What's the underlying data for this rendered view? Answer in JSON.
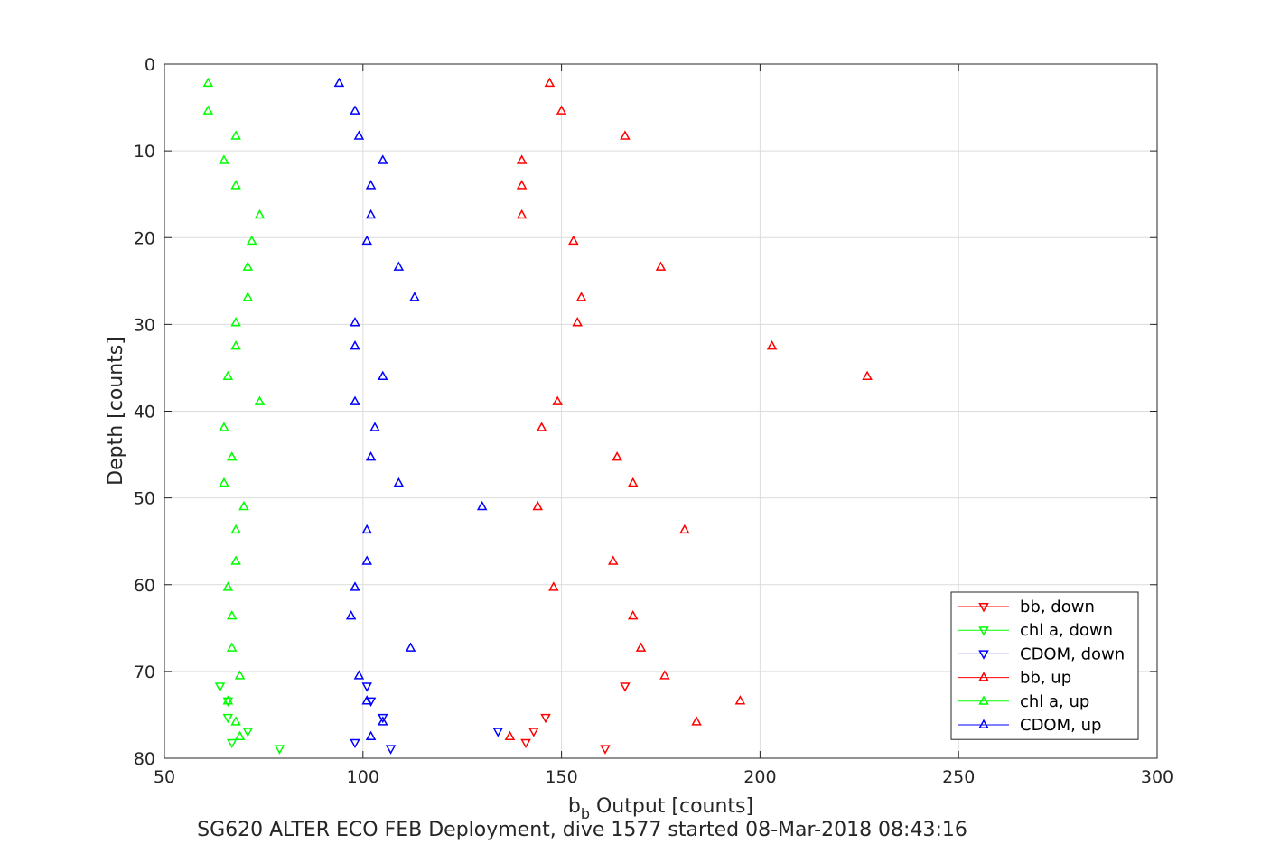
{
  "chart_data": {
    "type": "scatter",
    "title": "",
    "xlabel_main": "b",
    "xlabel_sub": "b",
    "xlabel_rest": " Output [counts]",
    "ylabel": "Depth [counts]",
    "caption": "SG620 ALTER ECO FEB Deployment, dive 1577 started 08-Mar-2018 08:43:16",
    "xlim": [
      50,
      300
    ],
    "ylim": [
      0,
      80
    ],
    "y_reversed": true,
    "grid": true,
    "xticks": [
      50,
      100,
      150,
      200,
      250,
      300
    ],
    "yticks": [
      0,
      10,
      20,
      30,
      40,
      50,
      60,
      70,
      80
    ],
    "legend_position": "bottom-right",
    "series": [
      {
        "name": "bb, down",
        "color": "#ff0000",
        "marker": "triangle-down",
        "points": [
          [
            166,
            71.7
          ],
          [
            146,
            75.3
          ],
          [
            143,
            76.9
          ],
          [
            141,
            78.2
          ],
          [
            161,
            78.9
          ]
        ]
      },
      {
        "name": "chl a, down",
        "color": "#00ff00",
        "marker": "triangle-down",
        "points": [
          [
            64,
            71.7
          ],
          [
            66,
            73.4
          ],
          [
            66,
            75.3
          ],
          [
            71,
            76.9
          ],
          [
            67,
            78.2
          ],
          [
            79,
            78.9
          ]
        ]
      },
      {
        "name": "CDOM, down",
        "color": "#0000ff",
        "marker": "triangle-down",
        "points": [
          [
            101,
            71.7
          ],
          [
            102,
            73.4
          ],
          [
            105,
            75.3
          ],
          [
            134,
            76.9
          ],
          [
            98,
            78.2
          ],
          [
            107,
            78.9
          ]
        ]
      },
      {
        "name": "bb, up",
        "color": "#ff0000",
        "marker": "triangle-up",
        "points": [
          [
            147,
            2.2
          ],
          [
            150,
            5.4
          ],
          [
            166,
            8.3
          ],
          [
            140,
            11.1
          ],
          [
            140,
            14
          ],
          [
            140,
            17.4
          ],
          [
            153,
            20.4
          ],
          [
            175,
            23.4
          ],
          [
            155,
            26.9
          ],
          [
            154,
            29.8
          ],
          [
            203,
            32.5
          ],
          [
            227,
            36
          ],
          [
            149,
            38.9
          ],
          [
            145,
            41.9
          ],
          [
            164,
            45.3
          ],
          [
            168,
            48.3
          ],
          [
            144,
            51
          ],
          [
            181,
            53.7
          ],
          [
            163,
            57.3
          ],
          [
            148,
            60.3
          ],
          [
            168,
            63.6
          ],
          [
            170,
            67.3
          ],
          [
            176,
            70.5
          ],
          [
            195,
            73.4
          ],
          [
            184,
            75.8
          ],
          [
            137,
            77.5
          ]
        ]
      },
      {
        "name": "chl a, up",
        "color": "#00ff00",
        "marker": "triangle-up",
        "points": [
          [
            61,
            2.2
          ],
          [
            61,
            5.4
          ],
          [
            68,
            8.3
          ],
          [
            65,
            11.1
          ],
          [
            68,
            14
          ],
          [
            74,
            17.4
          ],
          [
            72,
            20.4
          ],
          [
            71,
            23.4
          ],
          [
            71,
            26.9
          ],
          [
            68,
            29.8
          ],
          [
            68,
            32.5
          ],
          [
            66,
            36
          ],
          [
            74,
            38.9
          ],
          [
            65,
            41.9
          ],
          [
            67,
            45.3
          ],
          [
            65,
            48.3
          ],
          [
            70,
            51
          ],
          [
            68,
            53.7
          ],
          [
            68,
            57.3
          ],
          [
            66,
            60.3
          ],
          [
            67,
            63.6
          ],
          [
            67,
            67.3
          ],
          [
            69,
            70.5
          ],
          [
            66,
            73.4
          ],
          [
            68,
            75.8
          ],
          [
            69,
            77.5
          ]
        ]
      },
      {
        "name": "CDOM, up",
        "color": "#0000ff",
        "marker": "triangle-up",
        "points": [
          [
            94,
            2.2
          ],
          [
            98,
            5.4
          ],
          [
            99,
            8.3
          ],
          [
            105,
            11.1
          ],
          [
            102,
            14
          ],
          [
            102,
            17.4
          ],
          [
            101,
            20.4
          ],
          [
            109,
            23.4
          ],
          [
            113,
            26.9
          ],
          [
            98,
            29.8
          ],
          [
            98,
            32.5
          ],
          [
            105,
            36
          ],
          [
            98,
            38.9
          ],
          [
            103,
            41.9
          ],
          [
            102,
            45.3
          ],
          [
            109,
            48.3
          ],
          [
            130,
            51
          ],
          [
            101,
            53.7
          ],
          [
            101,
            57.3
          ],
          [
            98,
            60.3
          ],
          [
            97,
            63.6
          ],
          [
            112,
            67.3
          ],
          [
            99,
            70.5
          ],
          [
            101,
            73.4
          ],
          [
            105,
            75.8
          ],
          [
            102,
            77.5
          ]
        ]
      }
    ]
  }
}
